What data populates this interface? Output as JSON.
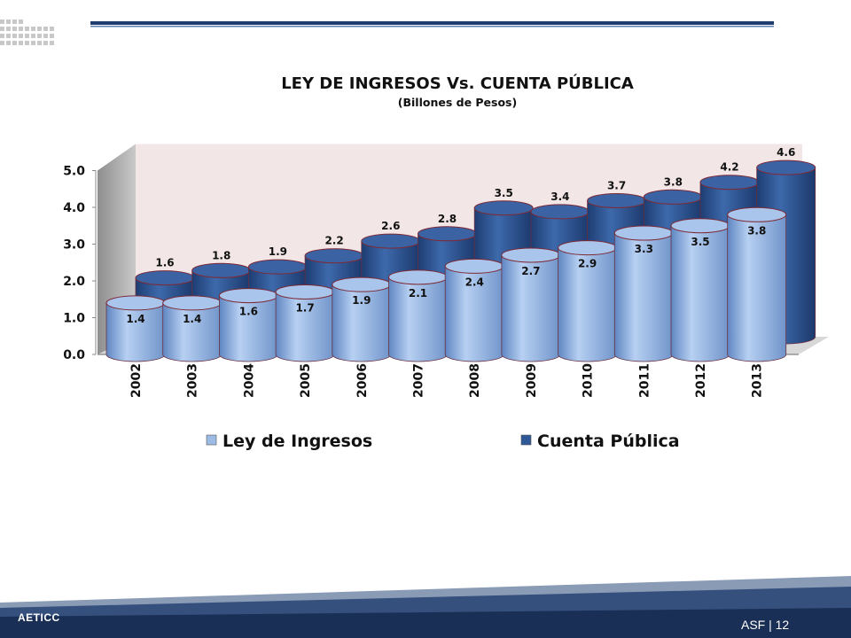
{
  "footer": {
    "left_text": "AETICC",
    "page_label": "ASF | 12"
  },
  "colors": {
    "ley": "#9cbce6",
    "cuenta": "#2f5897",
    "rims": "#7d2a36",
    "backwall": "#f2e6e6"
  },
  "chart_data": {
    "type": "bar",
    "title": "LEY DE INGRESOS Vs. CUENTA PÚBLICA",
    "subtitle": "(Billones de Pesos)",
    "categories": [
      "2002",
      "2003",
      "2004",
      "2005",
      "2006",
      "2007",
      "2008",
      "2009",
      "2010",
      "2011",
      "2012",
      "2013"
    ],
    "series": [
      {
        "name": "Ley de Ingresos",
        "values": [
          1.4,
          1.4,
          1.6,
          1.7,
          1.9,
          2.1,
          2.4,
          2.7,
          2.9,
          3.3,
          3.5,
          3.8
        ],
        "color": "#9cbce6"
      },
      {
        "name": "Cuenta Pública",
        "values": [
          1.6,
          1.8,
          1.9,
          2.2,
          2.6,
          2.8,
          3.5,
          3.4,
          3.7,
          3.8,
          4.2,
          4.6
        ],
        "color": "#2f5897"
      }
    ],
    "yticks": [
      "0.0",
      "1.0",
      "2.0",
      "3.0",
      "4.0",
      "5.0"
    ],
    "ylim": [
      0,
      5
    ],
    "legend": "bottom",
    "three_d": true
  }
}
